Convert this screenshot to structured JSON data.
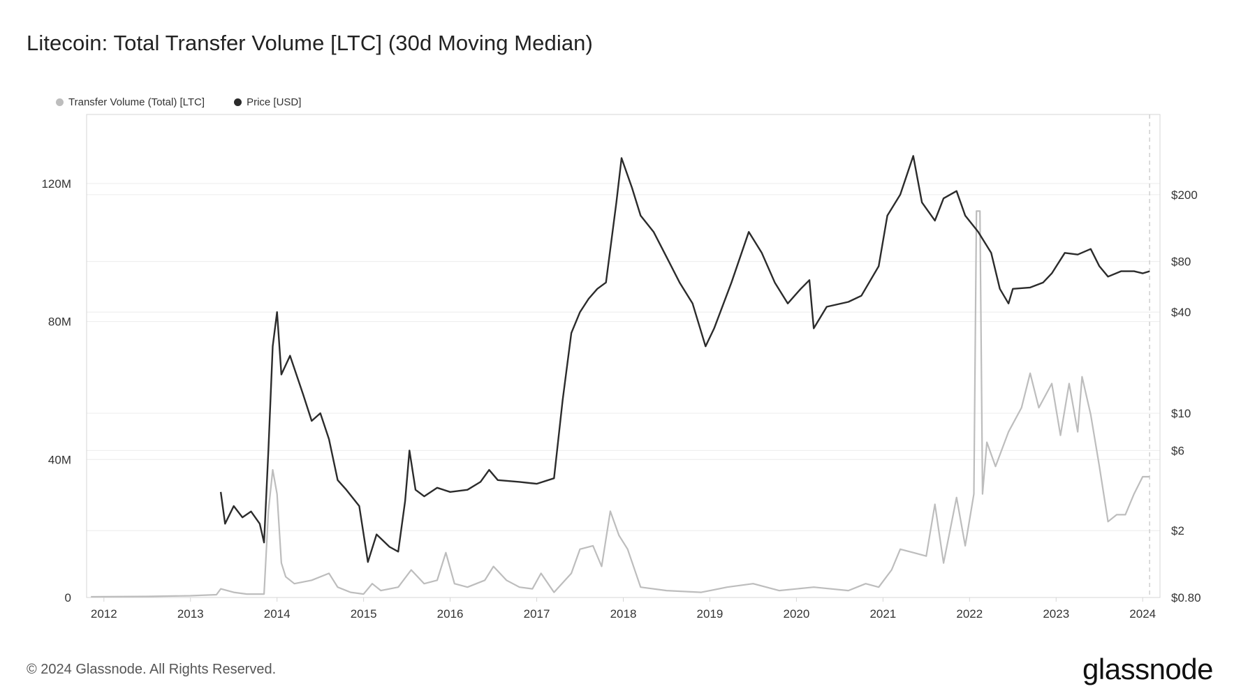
{
  "title": "Litecoin: Total Transfer Volume [LTC] (30d Moving Median)",
  "footer": "© 2024 Glassnode. All Rights Reserved.",
  "brand": "glassnode",
  "colors": {
    "volume": "#bdbdbd",
    "price": "#2b2b2b",
    "grid": "#ececec",
    "axis": "#d6d6d6"
  },
  "chart_data": {
    "type": "line",
    "title": "Litecoin: Total Transfer Volume [LTC] (30d Moving Median)",
    "legend_position": "top-left",
    "x_range": [
      2011.8,
      2024.2
    ],
    "x_ticks": [
      {
        "value": 2012,
        "label": "2012"
      },
      {
        "value": 2013,
        "label": "2013"
      },
      {
        "value": 2014,
        "label": "2014"
      },
      {
        "value": 2015,
        "label": "2015"
      },
      {
        "value": 2016,
        "label": "2016"
      },
      {
        "value": 2017,
        "label": "2017"
      },
      {
        "value": 2018,
        "label": "2018"
      },
      {
        "value": 2019,
        "label": "2019"
      },
      {
        "value": 2020,
        "label": "2020"
      },
      {
        "value": 2021,
        "label": "2021"
      },
      {
        "value": 2022,
        "label": "2022"
      },
      {
        "value": 2023,
        "label": "2023"
      },
      {
        "value": 2024,
        "label": "2024"
      }
    ],
    "y_left": {
      "label": "Transfer Volume (Total) [LTC]",
      "range": [
        0,
        140000000
      ],
      "ticks": [
        {
          "value": 0,
          "label": "0"
        },
        {
          "value": 40000000,
          "label": "40M"
        },
        {
          "value": 80000000,
          "label": "80M"
        },
        {
          "value": 120000000,
          "label": "120M"
        }
      ]
    },
    "y_right": {
      "label": "Price [USD]",
      "scale": "log",
      "range": [
        0.8,
        600
      ],
      "ticks": [
        {
          "value": 0.8,
          "label": "$0.80"
        },
        {
          "value": 2,
          "label": "$2"
        },
        {
          "value": 6,
          "label": "$6"
        },
        {
          "value": 10,
          "label": "$10"
        },
        {
          "value": 40,
          "label": "$40"
        },
        {
          "value": 80,
          "label": "$80"
        },
        {
          "value": 200,
          "label": "$200"
        }
      ]
    },
    "series": [
      {
        "name": "Transfer Volume (Total) [LTC]",
        "axis": "left",
        "points": [
          [
            2011.85,
            200000.0
          ],
          [
            2012.5,
            300000.0
          ],
          [
            2013.0,
            500000.0
          ],
          [
            2013.3,
            800000.0
          ],
          [
            2013.35,
            2500000.0
          ],
          [
            2013.5,
            1500000.0
          ],
          [
            2013.65,
            1000000.0
          ],
          [
            2013.85,
            1000000.0
          ],
          [
            2013.9,
            25000000.0
          ],
          [
            2013.95,
            37000000.0
          ],
          [
            2014.0,
            30000000.0
          ],
          [
            2014.05,
            10000000.0
          ],
          [
            2014.1,
            6000000.0
          ],
          [
            2014.2,
            4000000.0
          ],
          [
            2014.4,
            5000000.0
          ],
          [
            2014.6,
            7000000.0
          ],
          [
            2014.7,
            3000000.0
          ],
          [
            2014.85,
            1500000.0
          ],
          [
            2015.0,
            1000000.0
          ],
          [
            2015.1,
            4000000.0
          ],
          [
            2015.2,
            2000000.0
          ],
          [
            2015.4,
            3000000.0
          ],
          [
            2015.55,
            8000000.0
          ],
          [
            2015.7,
            4000000.0
          ],
          [
            2015.85,
            5000000.0
          ],
          [
            2015.95,
            13000000.0
          ],
          [
            2016.05,
            4000000.0
          ],
          [
            2016.2,
            3000000.0
          ],
          [
            2016.4,
            5000000.0
          ],
          [
            2016.5,
            9000000.0
          ],
          [
            2016.65,
            5000000.0
          ],
          [
            2016.8,
            3000000.0
          ],
          [
            2016.95,
            2500000.0
          ],
          [
            2017.05,
            7000000.0
          ],
          [
            2017.2,
            1500000.0
          ],
          [
            2017.4,
            7000000.0
          ],
          [
            2017.5,
            14000000.0
          ],
          [
            2017.65,
            15000000.0
          ],
          [
            2017.75,
            9000000.0
          ],
          [
            2017.85,
            25000000.0
          ],
          [
            2017.95,
            18000000.0
          ],
          [
            2018.05,
            14000000.0
          ],
          [
            2018.2,
            3000000.0
          ],
          [
            2018.5,
            2000000.0
          ],
          [
            2018.9,
            1500000.0
          ],
          [
            2019.2,
            3000000.0
          ],
          [
            2019.5,
            4000000.0
          ],
          [
            2019.8,
            2000000.0
          ],
          [
            2020.2,
            3000000.0
          ],
          [
            2020.6,
            2000000.0
          ],
          [
            2020.8,
            4000000.0
          ],
          [
            2020.95,
            3000000.0
          ],
          [
            2021.1,
            8000000.0
          ],
          [
            2021.2,
            14000000.0
          ],
          [
            2021.35,
            13000000.0
          ],
          [
            2021.5,
            12000000.0
          ],
          [
            2021.6,
            27000000.0
          ],
          [
            2021.7,
            10000000.0
          ],
          [
            2021.85,
            29000000.0
          ],
          [
            2021.95,
            15000000.0
          ],
          [
            2022.05,
            30000000.0
          ],
          [
            2022.08,
            112000000.0
          ],
          [
            2022.12,
            112000000.0
          ],
          [
            2022.15,
            30000000.0
          ],
          [
            2022.2,
            45000000.0
          ],
          [
            2022.3,
            38000000.0
          ],
          [
            2022.45,
            48000000.0
          ],
          [
            2022.6,
            55000000.0
          ],
          [
            2022.7,
            65000000.0
          ],
          [
            2022.8,
            55000000.0
          ],
          [
            2022.95,
            62000000.0
          ],
          [
            2023.05,
            47000000.0
          ],
          [
            2023.15,
            62000000.0
          ],
          [
            2023.25,
            48000000.0
          ],
          [
            2023.3,
            64000000.0
          ],
          [
            2023.4,
            53000000.0
          ],
          [
            2023.5,
            38000000.0
          ],
          [
            2023.6,
            22000000.0
          ],
          [
            2023.7,
            24000000.0
          ],
          [
            2023.8,
            24000000.0
          ],
          [
            2023.9,
            30000000.0
          ],
          [
            2024.0,
            35000000.0
          ],
          [
            2024.08,
            35000000.0
          ]
        ]
      },
      {
        "name": "Price [USD]",
        "axis": "right",
        "points": [
          [
            2013.35,
            3.4
          ],
          [
            2013.4,
            2.2
          ],
          [
            2013.5,
            2.8
          ],
          [
            2013.6,
            2.4
          ],
          [
            2013.7,
            2.6
          ],
          [
            2013.8,
            2.2
          ],
          [
            2013.85,
            1.7
          ],
          [
            2013.9,
            6
          ],
          [
            2013.95,
            25
          ],
          [
            2014.0,
            40
          ],
          [
            2014.05,
            17
          ],
          [
            2014.15,
            22
          ],
          [
            2014.3,
            13
          ],
          [
            2014.4,
            9
          ],
          [
            2014.5,
            10
          ],
          [
            2014.6,
            7
          ],
          [
            2014.7,
            4
          ],
          [
            2014.8,
            3.5
          ],
          [
            2014.95,
            2.8
          ],
          [
            2015.05,
            1.3
          ],
          [
            2015.15,
            1.9
          ],
          [
            2015.3,
            1.6
          ],
          [
            2015.4,
            1.5
          ],
          [
            2015.48,
            3
          ],
          [
            2015.53,
            6
          ],
          [
            2015.6,
            3.5
          ],
          [
            2015.7,
            3.2
          ],
          [
            2015.85,
            3.6
          ],
          [
            2016.0,
            3.4
          ],
          [
            2016.2,
            3.5
          ],
          [
            2016.35,
            3.9
          ],
          [
            2016.45,
            4.6
          ],
          [
            2016.55,
            4.0
          ],
          [
            2016.8,
            3.9
          ],
          [
            2017.0,
            3.8
          ],
          [
            2017.2,
            4.1
          ],
          [
            2017.3,
            12
          ],
          [
            2017.4,
            30
          ],
          [
            2017.5,
            40
          ],
          [
            2017.6,
            48
          ],
          [
            2017.7,
            55
          ],
          [
            2017.8,
            60
          ],
          [
            2017.92,
            180
          ],
          [
            2017.98,
            330
          ],
          [
            2018.1,
            220
          ],
          [
            2018.2,
            150
          ],
          [
            2018.35,
            120
          ],
          [
            2018.5,
            85
          ],
          [
            2018.65,
            60
          ],
          [
            2018.8,
            45
          ],
          [
            2018.95,
            25
          ],
          [
            2019.05,
            32
          ],
          [
            2019.25,
            60
          ],
          [
            2019.45,
            120
          ],
          [
            2019.6,
            90
          ],
          [
            2019.75,
            60
          ],
          [
            2019.9,
            45
          ],
          [
            2020.05,
            55
          ],
          [
            2020.15,
            62
          ],
          [
            2020.2,
            32
          ],
          [
            2020.35,
            43
          ],
          [
            2020.6,
            46
          ],
          [
            2020.75,
            50
          ],
          [
            2020.95,
            75
          ],
          [
            2021.05,
            150
          ],
          [
            2021.2,
            200
          ],
          [
            2021.35,
            340
          ],
          [
            2021.45,
            180
          ],
          [
            2021.6,
            140
          ],
          [
            2021.7,
            190
          ],
          [
            2021.85,
            210
          ],
          [
            2021.95,
            150
          ],
          [
            2022.1,
            120
          ],
          [
            2022.25,
            90
          ],
          [
            2022.35,
            55
          ],
          [
            2022.45,
            45
          ],
          [
            2022.5,
            55
          ],
          [
            2022.7,
            56
          ],
          [
            2022.85,
            60
          ],
          [
            2022.95,
            68
          ],
          [
            2023.1,
            90
          ],
          [
            2023.25,
            88
          ],
          [
            2023.4,
            95
          ],
          [
            2023.5,
            75
          ],
          [
            2023.6,
            65
          ],
          [
            2023.75,
            70
          ],
          [
            2023.9,
            70
          ],
          [
            2024.0,
            68
          ],
          [
            2024.08,
            70
          ]
        ]
      }
    ]
  }
}
